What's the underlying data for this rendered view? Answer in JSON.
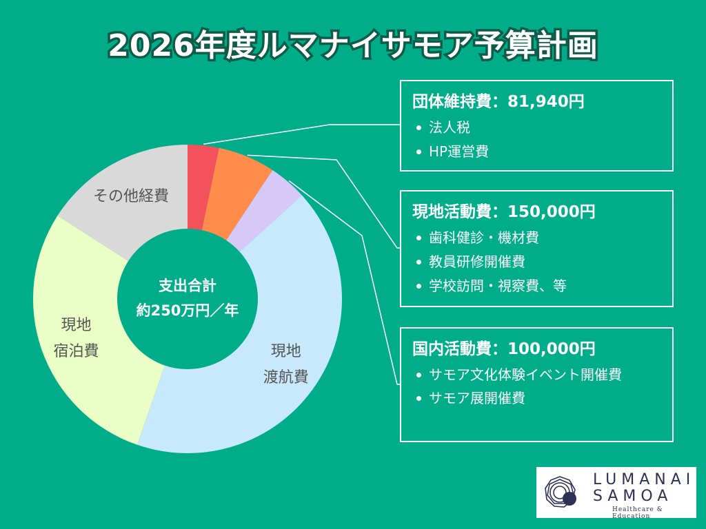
{
  "title": "2026年度ルマナイサモア予算計画",
  "center_label": [
    "支出合計",
    "約250万円／年"
  ],
  "colors": {
    "background": "#00ad8a",
    "red": "#f4525b",
    "orange": "#ff8c4a",
    "lavender": "#d7c8f8",
    "lightblue": "#c8e9fb",
    "lightgreen": "#eafec6",
    "gray": "#d9d9d9",
    "label_text": "#555555"
  },
  "chart_data": {
    "type": "pie",
    "variant": "donut",
    "center_text": [
      "支出合計",
      "約250万円／年"
    ],
    "total": 2500000,
    "slices": [
      {
        "label": "団体維持費",
        "value": 81940,
        "color": "#f4525b",
        "labeled": false
      },
      {
        "label": "現地活動費",
        "value": 150000,
        "color": "#ff8c4a",
        "labeled": false
      },
      {
        "label": "国内活動費",
        "value": 100000,
        "color": "#d7c8f8",
        "labeled": false
      },
      {
        "label": "現地渡航費",
        "value": 1050000,
        "color": "#c8e9fb",
        "labeled": true,
        "text": [
          "現地",
          "渡航費"
        ]
      },
      {
        "label": "現地宿泊費",
        "value": 720000,
        "color": "#eafec6",
        "labeled": true,
        "text": [
          "現地",
          "宿泊費"
        ]
      },
      {
        "label": "その他経費",
        "value": 398060,
        "color": "#d9d9d9",
        "labeled": true,
        "text": [
          "その他経費"
        ]
      }
    ]
  },
  "boxes": [
    {
      "title": "団体維持費：81,940円",
      "items": [
        "法人税",
        "HP運営費"
      ]
    },
    {
      "title": "現地活動費：150,000円",
      "items": [
        "歯科健診・機材費",
        "教員研修開催費",
        "学校訪問・視察費、等"
      ]
    },
    {
      "title": "国内活動費：100,000円",
      "items": [
        "サモア文化体験イベント開催費",
        "サモア展開催費"
      ]
    }
  ],
  "logo": {
    "line1": "LUMANAI",
    "line2": "SAMOA",
    "tagline": "Healthcare & Education"
  }
}
